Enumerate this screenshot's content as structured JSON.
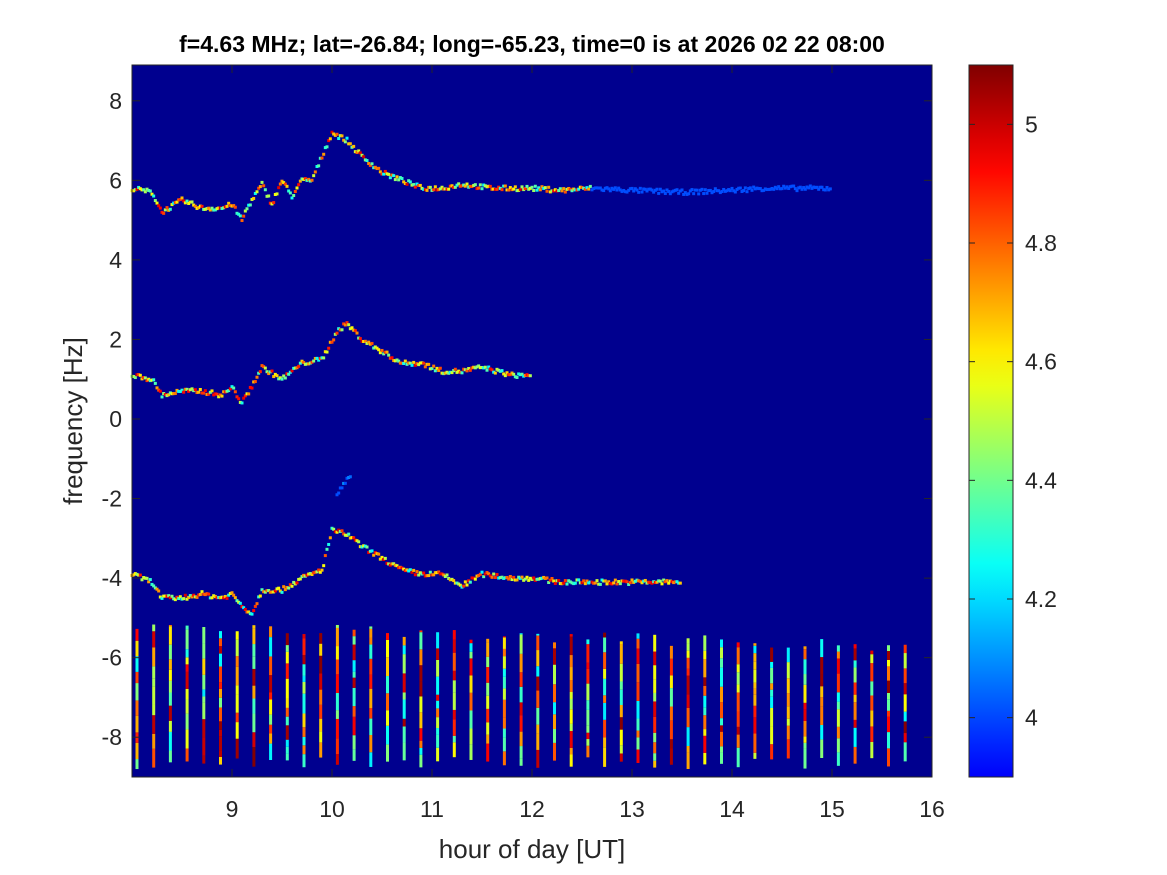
{
  "chart_data": {
    "type": "heatmap",
    "title": "f=4.63 MHz;  lat=-26.84; long=-65.23, time=0 is at 2026 02 22 08:00",
    "xlabel": "hour of day [UT]",
    "ylabel": "frequency [Hz]",
    "xlim": [
      8.0,
      16.0
    ],
    "ylim": [
      -9.0,
      8.9
    ],
    "xticks": [
      9,
      10,
      11,
      12,
      13,
      14,
      15,
      16
    ],
    "yticks": [
      -8,
      -6,
      -4,
      -2,
      0,
      2,
      4,
      6,
      8
    ],
    "colormap": "jet",
    "background_color": "#00008f",
    "colorbar": {
      "clim": [
        3.9,
        5.1
      ],
      "ticks": [
        4,
        4.2,
        4.4,
        4.6,
        4.8,
        5
      ],
      "tick_labels": [
        "4",
        "4.2",
        "4.4",
        "4.6",
        "4.8",
        "5"
      ]
    },
    "traces": [
      {
        "points": [
          [
            8.0,
            5.8
          ],
          [
            8.2,
            5.7
          ],
          [
            8.3,
            5.2
          ],
          [
            8.5,
            5.5
          ],
          [
            8.7,
            5.3
          ],
          [
            8.9,
            5.3
          ],
          [
            9.0,
            5.4
          ],
          [
            9.1,
            5.0
          ],
          [
            9.15,
            5.3
          ],
          [
            9.3,
            5.9
          ],
          [
            9.4,
            5.4
          ],
          [
            9.5,
            6.0
          ],
          [
            9.6,
            5.6
          ],
          [
            9.7,
            6.0
          ],
          [
            9.8,
            6.0
          ],
          [
            9.9,
            6.6
          ],
          [
            10.0,
            7.2
          ],
          [
            10.15,
            7.0
          ],
          [
            10.3,
            6.6
          ],
          [
            10.5,
            6.2
          ],
          [
            10.7,
            6.0
          ],
          [
            10.9,
            5.8
          ],
          [
            11.1,
            5.8
          ],
          [
            11.3,
            5.9
          ],
          [
            11.6,
            5.8
          ],
          [
            12.0,
            5.8
          ],
          [
            12.3,
            5.75
          ],
          [
            12.6,
            5.8
          ]
        ],
        "intensity": 5.0
      },
      {
        "points": [
          [
            12.6,
            5.8
          ],
          [
            13.0,
            5.75
          ],
          [
            13.5,
            5.7
          ],
          [
            14.0,
            5.75
          ],
          [
            14.3,
            5.8
          ],
          [
            15.0,
            5.8
          ]
        ],
        "intensity": 4.1
      },
      {
        "points": [
          [
            8.0,
            1.1
          ],
          [
            8.2,
            1.0
          ],
          [
            8.3,
            0.6
          ],
          [
            8.5,
            0.7
          ],
          [
            8.7,
            0.7
          ],
          [
            8.9,
            0.6
          ],
          [
            9.0,
            0.8
          ],
          [
            9.1,
            0.4
          ],
          [
            9.15,
            0.6
          ],
          [
            9.3,
            1.3
          ],
          [
            9.5,
            1.0
          ],
          [
            9.7,
            1.4
          ],
          [
            9.9,
            1.5
          ],
          [
            10.05,
            2.2
          ],
          [
            10.15,
            2.4
          ],
          [
            10.3,
            2.0
          ],
          [
            10.5,
            1.7
          ],
          [
            10.7,
            1.4
          ],
          [
            10.9,
            1.4
          ],
          [
            11.1,
            1.2
          ],
          [
            11.3,
            1.2
          ],
          [
            11.5,
            1.3
          ],
          [
            11.8,
            1.1
          ],
          [
            12.0,
            1.1
          ]
        ],
        "intensity": 5.0
      },
      {
        "points": [
          [
            8.0,
            -3.9
          ],
          [
            8.2,
            -4.1
          ],
          [
            8.3,
            -4.5
          ],
          [
            8.5,
            -4.5
          ],
          [
            8.7,
            -4.4
          ],
          [
            8.9,
            -4.5
          ],
          [
            9.0,
            -4.4
          ],
          [
            9.1,
            -4.7
          ],
          [
            9.2,
            -4.9
          ],
          [
            9.3,
            -4.3
          ],
          [
            9.5,
            -4.3
          ],
          [
            9.7,
            -4.0
          ],
          [
            9.9,
            -3.8
          ],
          [
            10.0,
            -2.8
          ],
          [
            10.15,
            -2.9
          ],
          [
            10.3,
            -3.2
          ],
          [
            10.5,
            -3.5
          ],
          [
            10.7,
            -3.8
          ],
          [
            10.9,
            -3.9
          ],
          [
            11.1,
            -3.9
          ],
          [
            11.3,
            -4.2
          ],
          [
            11.5,
            -3.9
          ],
          [
            11.8,
            -4.0
          ],
          [
            12.0,
            -4.0
          ],
          [
            12.3,
            -4.1
          ],
          [
            12.6,
            -4.1
          ],
          [
            13.0,
            -4.1
          ],
          [
            13.5,
            -4.1
          ]
        ],
        "intensity": 5.0
      },
      {
        "points": [
          [
            10.05,
            -1.9
          ],
          [
            10.1,
            -1.7
          ],
          [
            10.2,
            -1.4
          ]
        ],
        "intensity": 4.3
      }
    ],
    "vertical_streaks": {
      "x_start": 8.05,
      "x_end": 15.85,
      "spacing": 0.167,
      "y_range": [
        -8.8,
        -5.0
      ],
      "intensity": 5.0
    }
  }
}
